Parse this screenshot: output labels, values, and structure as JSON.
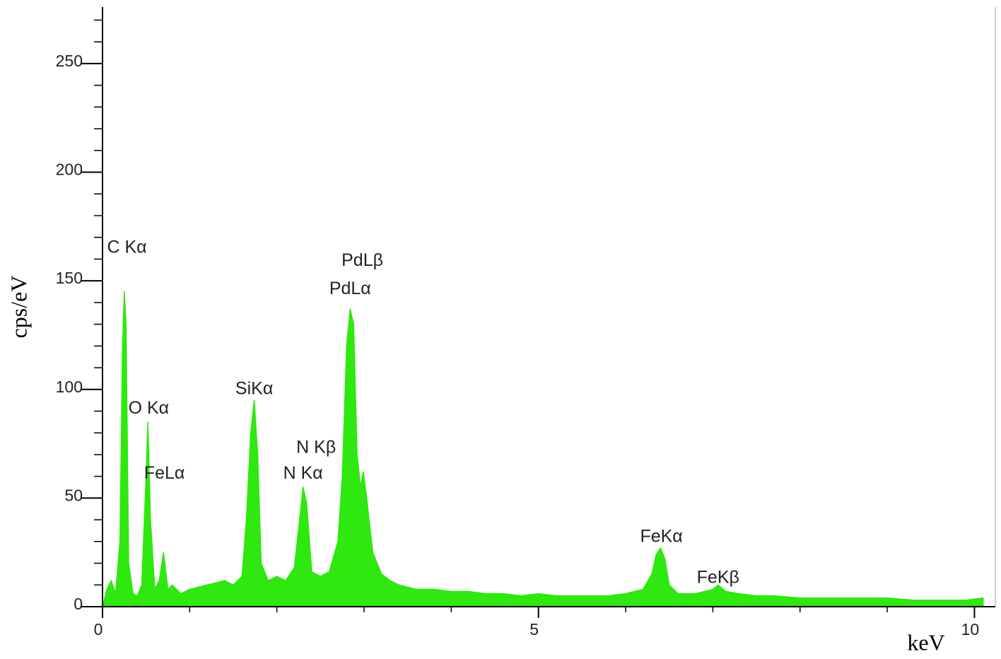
{
  "chart_data": {
    "type": "area",
    "x_label": "keV",
    "y_label": "cps/eV",
    "color": "#2ee80f",
    "xlim": [
      0,
      10.24
    ],
    "ylim": [
      0,
      276
    ],
    "xticks": [
      0,
      5,
      10
    ],
    "yticks": [
      0,
      50,
      100,
      150,
      200,
      250
    ],
    "xminorticks": [
      1,
      2,
      3,
      4,
      6,
      7,
      8,
      9
    ],
    "yminorticks": [
      10,
      20,
      30,
      40,
      60,
      70,
      80,
      90,
      110,
      120,
      130,
      140,
      160,
      170,
      180,
      190,
      210,
      220,
      230,
      240,
      260,
      270
    ],
    "x": [
      0,
      0.05,
      0.1,
      0.15,
      0.2,
      0.23,
      0.25,
      0.27,
      0.3,
      0.35,
      0.4,
      0.45,
      0.5,
      0.52,
      0.55,
      0.6,
      0.65,
      0.7,
      0.75,
      0.8,
      0.9,
      1.0,
      1.1,
      1.2,
      1.3,
      1.4,
      1.5,
      1.6,
      1.65,
      1.7,
      1.74,
      1.78,
      1.82,
      1.9,
      2.0,
      2.1,
      2.2,
      2.26,
      2.3,
      2.34,
      2.4,
      2.5,
      2.6,
      2.7,
      2.75,
      2.8,
      2.84,
      2.88,
      2.92,
      2.96,
      2.99,
      3.03,
      3.1,
      3.2,
      3.3,
      3.4,
      3.5,
      3.6,
      3.8,
      4.0,
      4.2,
      4.4,
      4.6,
      4.8,
      5.0,
      5.2,
      5.4,
      5.6,
      5.8,
      6.0,
      6.2,
      6.3,
      6.35,
      6.4,
      6.45,
      6.5,
      6.6,
      6.8,
      7.0,
      7.06,
      7.15,
      7.3,
      7.5,
      7.7,
      8.0,
      8.3,
      8.6,
      9.0,
      9.3,
      9.6,
      9.9,
      10.1
    ],
    "values": [
      0,
      8,
      12,
      6,
      30,
      120,
      145,
      130,
      20,
      6,
      5,
      10,
      60,
      85,
      40,
      8,
      12,
      25,
      8,
      10,
      6,
      8,
      9,
      10,
      11,
      12,
      10,
      14,
      40,
      80,
      95,
      70,
      20,
      12,
      14,
      12,
      18,
      40,
      55,
      48,
      16,
      14,
      16,
      30,
      60,
      120,
      137,
      130,
      70,
      55,
      62,
      50,
      25,
      15,
      12,
      10,
      9,
      8,
      8,
      7,
      7,
      6,
      6,
      5,
      6,
      5,
      5,
      5,
      5,
      6,
      8,
      15,
      24,
      27,
      22,
      10,
      6,
      6,
      8,
      10,
      7,
      6,
      5,
      5,
      4,
      4,
      4,
      4,
      3,
      3,
      3,
      4
    ],
    "annotations": [
      {
        "text": "C Kα",
        "x": 0.28,
        "y": 165
      },
      {
        "text": "O Kα",
        "x": 0.53,
        "y": 91
      },
      {
        "text": "FeLα",
        "x": 0.71,
        "y": 61
      },
      {
        "text": "SiKα",
        "x": 1.74,
        "y": 100
      },
      {
        "text": "N Kβ",
        "x": 2.45,
        "y": 73
      },
      {
        "text": "N Kα",
        "x": 2.3,
        "y": 61
      },
      {
        "text": "PdLβ",
        "x": 2.98,
        "y": 159
      },
      {
        "text": "PdLα",
        "x": 2.84,
        "y": 146
      },
      {
        "text": "FeKα",
        "x": 6.41,
        "y": 32
      },
      {
        "text": "FeKβ",
        "x": 7.06,
        "y": 13
      }
    ]
  }
}
